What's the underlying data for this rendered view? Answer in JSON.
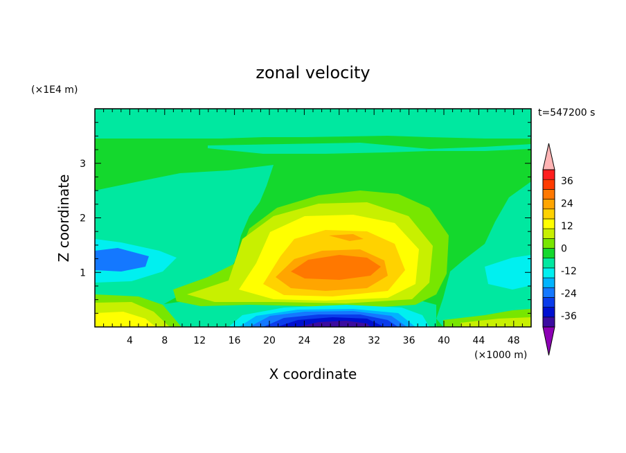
{
  "chart_data": {
    "type": "heatmap",
    "title": "zonal velocity",
    "xlabel": "X coordinate",
    "ylabel": "Z coordinate",
    "x_unit": "(×1000 m)",
    "y_unit": "(×1E4 m)",
    "time_label": "t=547200 s",
    "xlim": [
      0,
      50
    ],
    "ylim": [
      0,
      4
    ],
    "x_ticks": [
      "4",
      "8",
      "12",
      "16",
      "20",
      "24",
      "28",
      "32",
      "36",
      "40",
      "44",
      "48"
    ],
    "y_ticks": [
      "1",
      "2",
      "3"
    ],
    "colorbar": {
      "levels": [
        -42,
        -36,
        -30,
        -24,
        -18,
        -12,
        -6,
        0,
        6,
        12,
        18,
        24,
        30,
        36,
        42
      ],
      "labels": [
        "36",
        "24",
        "12",
        "0",
        "-12",
        "-24",
        "-36"
      ],
      "label_values": [
        36,
        24,
        12,
        0,
        -12,
        -24,
        -36
      ],
      "colors": [
        "#8c00b4",
        "#3c0ca0",
        "#0010d0",
        "#0a3ceb",
        "#1478ff",
        "#00b4ff",
        "#00f0f0",
        "#00e8a0",
        "#14d82d",
        "#78e600",
        "#c8f000",
        "#ffff00",
        "#ffd200",
        "#ffa500",
        "#ff7800",
        "#ff3c00",
        "#ff1e1e",
        "#ffb4b4"
      ],
      "extend": "both"
    },
    "field": [
      {
        "x": 26,
        "z": 1.1,
        "u": 20
      },
      {
        "x": 27,
        "z": 0.15,
        "u": -30
      },
      {
        "x": 2,
        "z": 1.3,
        "u": -12
      },
      {
        "x": 3,
        "z": 0.15,
        "u": 14
      },
      {
        "x": 46,
        "z": 0.15,
        "u": 10
      },
      {
        "x": 25,
        "z": 3.1,
        "u": 2
      },
      {
        "x": 8,
        "z": 2.8,
        "u": -3
      }
    ]
  }
}
